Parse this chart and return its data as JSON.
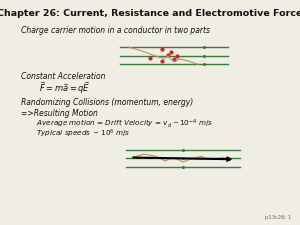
{
  "title": "Chapter 26: Current, Resistance and Electromotive Force",
  "bg_color": "#f0ede4",
  "title_color": "#111111",
  "title_fontsize": 6.8,
  "body_fontsize": 5.5,
  "indent_fontsize": 5.2,
  "small_fontsize": 3.8,
  "line1": "Charge carrier motion in a conductor in two parts",
  "line2": "Constant Acceleration",
  "line3": "Randomizing Collisions (momentum, energy)",
  "line4": "=>Resulting Motion",
  "footer": "p13c26: 1",
  "green_color": "#3a7a3a",
  "red_color": "#cc2222",
  "tan_color": "#b89060",
  "dark_color": "#111111"
}
